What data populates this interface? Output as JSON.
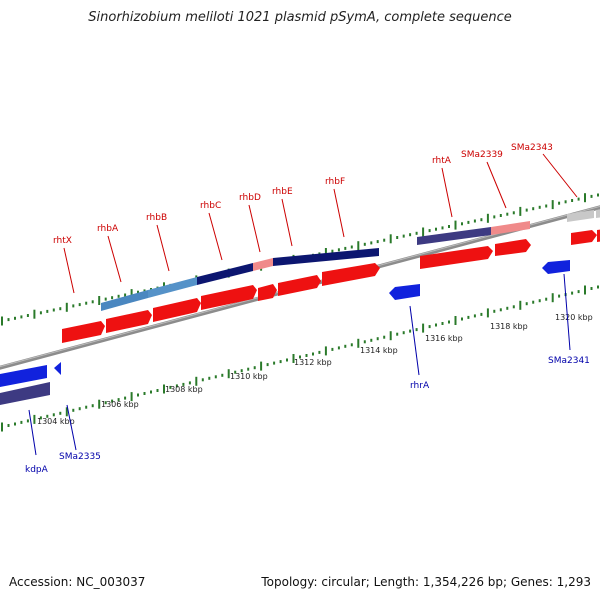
{
  "title": "Sinorhizobium meliloti 1021 plasmid pSymA, complete sequence",
  "footer": {
    "accession": "Accession: NC_003037",
    "summary": "Topology: circular; Length: 1,354,226 bp; Genes: 1,293"
  },
  "colors": {
    "backbone": "#8c8c8c",
    "cds": "#ee1111",
    "cds_reverse": "#1122dd",
    "operon_dark": "#0c1670",
    "operon_light": "#4a87c0",
    "operon_pink": "#f08a8a",
    "operon_gray": "#c8c8c8",
    "tick": "#2a7a2a",
    "label_forward": "#cc0000",
    "label_reverse": "#0000aa"
  },
  "scale": {
    "unit": "kbp",
    "labels": [
      "1304 kbp",
      "1306 kbp",
      "1308 kbp",
      "1310 kbp",
      "1312 kbp",
      "1314 kbp",
      "1316 kbp",
      "1318 kbp",
      "1320 kbp"
    ]
  },
  "genes_forward": [
    "rhtX",
    "rhbA",
    "rhbB",
    "rhbC",
    "rhbD",
    "rhbE",
    "rhbF",
    "rhtA",
    "SMa2339",
    "SMa2343"
  ],
  "genes_reverse": [
    "kdpA",
    "SMa2335",
    "rhrA",
    "SMa2341"
  ]
}
